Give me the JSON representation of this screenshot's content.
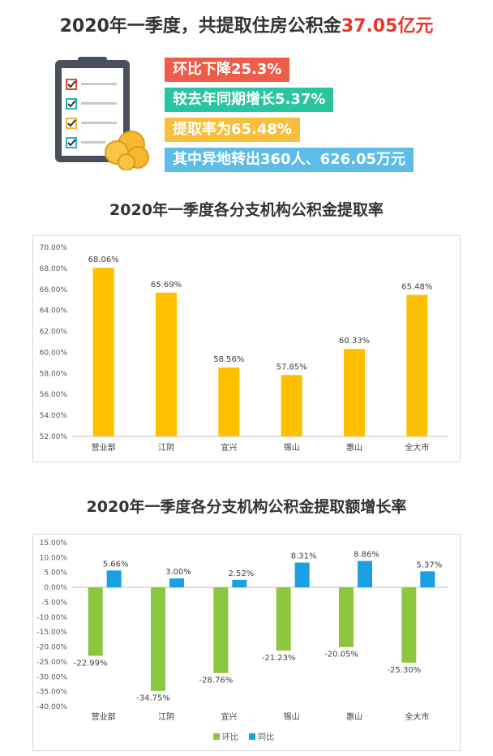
{
  "headline": {
    "prefix": "2020年一季度，共提取住房公积金",
    "highlight": "37.05亿元"
  },
  "stats": [
    {
      "text": "环比下降25.3%",
      "color": "#ee5c4a"
    },
    {
      "text": "较去年同期增长5.37%",
      "color": "#29c4a0"
    },
    {
      "text": "提取率为65.48%",
      "color": "#f7bf3c"
    },
    {
      "text": "其中异地转出360人、626.05万元",
      "color": "#5ebde6"
    }
  ],
  "chart_data": [
    {
      "type": "bar",
      "title": "2020年一季度各分支机构公积金提取率",
      "categories": [
        "营业部",
        "江阴",
        "宜兴",
        "锡山",
        "惠山",
        "全大市"
      ],
      "values": [
        68.06,
        65.69,
        58.56,
        57.85,
        60.33,
        65.48
      ],
      "data_labels": [
        "68.06%",
        "65.69%",
        "58.56%",
        "57.85%",
        "60.33%",
        "65.48%"
      ],
      "ylim": [
        52,
        70
      ],
      "yticks": [
        "52.00%",
        "54.00%",
        "56.00%",
        "58.00%",
        "60.00%",
        "62.00%",
        "64.00%",
        "66.00%",
        "68.00%",
        "70.00%"
      ],
      "color": "#ffc000",
      "grid": false
    },
    {
      "type": "bar",
      "title": "2020年一季度各分支机构公积金提取额增长率",
      "categories": [
        "营业部",
        "江阴",
        "宜兴",
        "锡山",
        "惠山",
        "全大市"
      ],
      "series": [
        {
          "name": "环比",
          "values": [
            -22.99,
            -34.75,
            -28.76,
            -21.23,
            -20.05,
            -25.3
          ],
          "labels": [
            "-22.99%",
            "-34.75%",
            "-28.76%",
            "-21.23%",
            "-20.05%",
            "-25.30%"
          ],
          "color": "#8dc63f"
        },
        {
          "name": "同比",
          "values": [
            5.66,
            3.0,
            2.52,
            8.31,
            8.86,
            5.37
          ],
          "labels": [
            "5.66%",
            "3.00%",
            "2.52%",
            "8.31%",
            "8.86%",
            "5.37%"
          ],
          "color": "#1ba1e2"
        }
      ],
      "ylim": [
        -40,
        15
      ],
      "yticks": [
        "-40.00%",
        "-35.00%",
        "-30.00%",
        "-25.00%",
        "-20.00%",
        "-15.00%",
        "-10.00%",
        "-5.00%",
        "0.00%",
        "5.00%",
        "10.00%",
        "15.00%"
      ],
      "legend": "bottom",
      "grid": false
    }
  ]
}
